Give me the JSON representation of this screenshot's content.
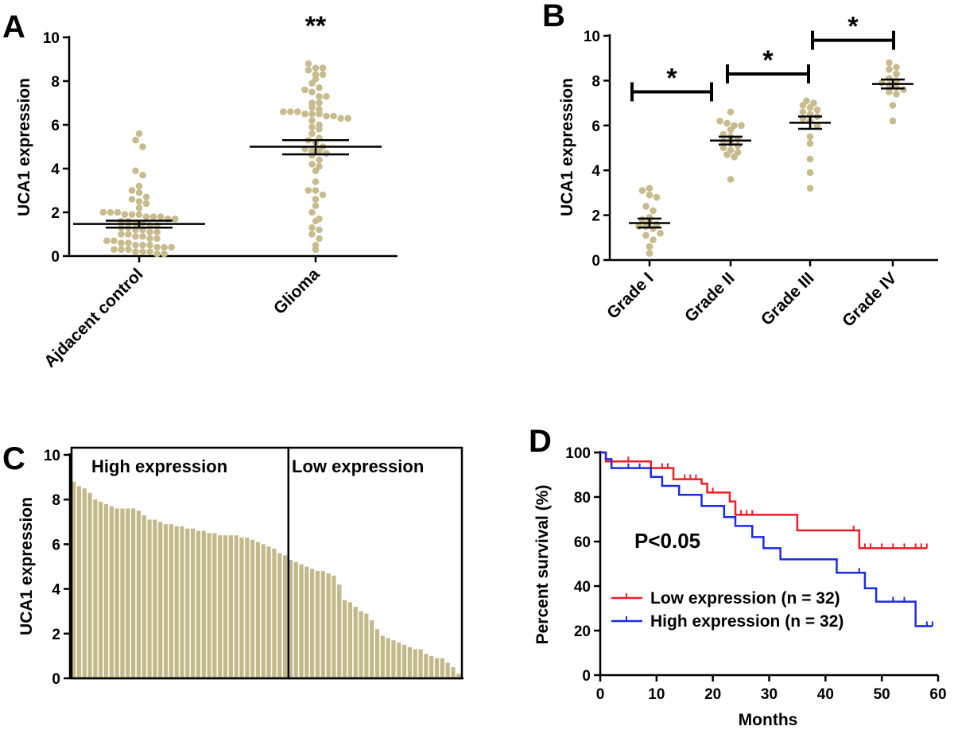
{
  "colors": {
    "dot": "#c8bb8d",
    "bar": "#c3b889",
    "low": "#ee1c24",
    "high": "#1c2ae8",
    "axis": "#000000"
  },
  "chart_data": [
    {
      "panel": "A",
      "type": "scatter",
      "ylabel": "UCA1 expression",
      "ylim": [
        0,
        10
      ],
      "yticks": [
        "0",
        "2",
        "4",
        "6",
        "8",
        "10"
      ],
      "categories": [
        "Ajdacent control",
        "Glioma"
      ],
      "groups": [
        {
          "category": "Ajdacent control",
          "mean": 1.47,
          "sem_low": 1.3,
          "sem_high": 1.62,
          "values": [
            5.6,
            5.3,
            5.0,
            3.9,
            3.7,
            3.2,
            3.0,
            2.9,
            2.7,
            2.6,
            2.5,
            2.4,
            2.2,
            2.0,
            2.0,
            2.0,
            1.9,
            1.9,
            1.9,
            1.8,
            1.8,
            1.8,
            1.7,
            1.7,
            1.6,
            1.6,
            1.5,
            1.5,
            1.4,
            1.4,
            1.3,
            1.3,
            1.2,
            1.2,
            1.1,
            1.1,
            1.0,
            1.0,
            0.9,
            0.9,
            0.8,
            0.8,
            0.7,
            0.7,
            0.6,
            0.6,
            0.5,
            0.5,
            0.5,
            0.4,
            0.4,
            0.4,
            0.3,
            0.3,
            0.3,
            0.2,
            0.2,
            0.2,
            0.1,
            0.1
          ]
        },
        {
          "category": "Glioma",
          "mean": 5.0,
          "sem_low": 4.65,
          "sem_high": 5.3,
          "values": [
            8.8,
            8.6,
            8.6,
            8.5,
            8.3,
            8.3,
            8.1,
            7.9,
            7.7,
            7.6,
            7.5,
            7.3,
            7.3,
            7.0,
            7.0,
            6.8,
            6.7,
            6.6,
            6.6,
            6.6,
            6.5,
            6.5,
            6.5,
            6.4,
            6.4,
            6.3,
            6.3,
            6.2,
            6.0,
            5.9,
            5.8,
            5.6,
            5.4,
            5.3,
            5.2,
            5.0,
            4.9,
            4.8,
            4.8,
            4.7,
            4.6,
            4.4,
            4.2,
            4.1,
            3.9,
            3.4,
            3.0,
            3.0,
            2.8,
            2.6,
            2.3,
            2.0,
            1.7,
            1.6,
            1.3,
            1.2,
            1.0,
            0.8,
            0.5,
            0.3
          ]
        }
      ],
      "annotations": [
        {
          "text": "**",
          "category": "Glioma",
          "y": 10.0
        }
      ]
    },
    {
      "panel": "B",
      "type": "scatter",
      "ylabel": "UCA1 expression",
      "ylim": [
        0,
        10
      ],
      "yticks": [
        "0",
        "2",
        "4",
        "6",
        "8",
        "10"
      ],
      "categories": [
        "Grade I",
        "Grade II",
        "Grade III",
        "Grade IV"
      ],
      "groups": [
        {
          "category": "Grade I",
          "mean": 1.65,
          "sem_low": 1.45,
          "sem_high": 1.85,
          "values": [
            3.2,
            3.1,
            2.9,
            2.8,
            2.4,
            2.2,
            1.9,
            1.8,
            1.7,
            1.6,
            1.5,
            1.5,
            1.4,
            1.2,
            1.1,
            0.9,
            0.6,
            0.3
          ]
        },
        {
          "category": "Grade II",
          "mean": 5.33,
          "sem_low": 5.15,
          "sem_high": 5.5,
          "values": [
            6.6,
            6.2,
            6.1,
            6.0,
            6.0,
            5.8,
            5.6,
            5.5,
            5.4,
            5.3,
            5.2,
            5.1,
            5.0,
            4.9,
            4.8,
            4.7,
            4.6,
            3.6
          ]
        },
        {
          "category": "Grade III",
          "mean": 6.12,
          "sem_low": 5.85,
          "sem_high": 6.4,
          "values": [
            7.1,
            7.0,
            6.9,
            6.8,
            6.7,
            6.6,
            6.5,
            6.4,
            6.3,
            6.2,
            6.0,
            5.5,
            5.2,
            4.5,
            3.9,
            3.2
          ]
        },
        {
          "category": "Grade IV",
          "mean": 7.85,
          "sem_low": 7.65,
          "sem_high": 8.05,
          "values": [
            8.8,
            8.6,
            8.5,
            8.3,
            8.1,
            8.0,
            7.9,
            7.8,
            7.7,
            7.6,
            7.5,
            7.4,
            6.9,
            6.2
          ]
        }
      ],
      "annotations": [
        {
          "text": "*",
          "from": "Grade I",
          "to": "Grade II",
          "y": 7.5
        },
        {
          "text": "*",
          "from": "Grade II",
          "to": "Grade III",
          "y": 8.3
        },
        {
          "text": "*",
          "from": "Grade III",
          "to": "Grade IV",
          "y": 9.8
        }
      ]
    },
    {
      "panel": "C",
      "type": "bar",
      "ylabel": "UCA1 expression",
      "ylim": [
        0,
        10
      ],
      "yticks": [
        "0",
        "2",
        "4",
        "6",
        "8",
        "10"
      ],
      "values": [
        8.8,
        8.6,
        8.5,
        8.3,
        8.0,
        7.9,
        7.8,
        7.7,
        7.6,
        7.6,
        7.6,
        7.6,
        7.5,
        7.3,
        7.1,
        7.1,
        7.0,
        6.9,
        6.9,
        6.8,
        6.8,
        6.7,
        6.7,
        6.6,
        6.6,
        6.5,
        6.5,
        6.4,
        6.4,
        6.4,
        6.4,
        6.3,
        6.3,
        6.2,
        6.1,
        6.0,
        5.9,
        5.8,
        5.6,
        5.5,
        5.3,
        5.2,
        5.1,
        5.0,
        4.9,
        4.8,
        4.8,
        4.7,
        4.6,
        4.2,
        3.5,
        3.4,
        3.2,
        3.0,
        2.9,
        2.6,
        2.2,
        1.9,
        1.8,
        1.7,
        1.6,
        1.5,
        1.4,
        1.3,
        1.3,
        1.1,
        1.0,
        0.9,
        0.9,
        0.7,
        0.5,
        0.2
      ],
      "groups": [
        {
          "label": "High expression",
          "from": 0,
          "to": 40
        },
        {
          "label": "Low expression",
          "from": 40,
          "to": 72
        }
      ]
    },
    {
      "panel": "D",
      "type": "line",
      "xlabel": "Months",
      "ylabel": "Percent survival (%)",
      "xlim": [
        0,
        60
      ],
      "ylim": [
        0,
        100
      ],
      "xticks": [
        "0",
        "10",
        "20",
        "30",
        "40",
        "50",
        "60"
      ],
      "yticks": [
        "0",
        "20",
        "40",
        "60",
        "80",
        "100"
      ],
      "annotation": "P<0.05",
      "series": [
        {
          "name": "Low expression (n = 32)",
          "color_key": "low",
          "steps": [
            [
              0,
              100
            ],
            [
              1,
              96
            ],
            [
              9,
              93
            ],
            [
              13,
              88
            ],
            [
              18,
              86
            ],
            [
              19,
              82
            ],
            [
              23,
              78
            ],
            [
              24,
              72
            ],
            [
              35,
              65
            ],
            [
              46,
              57
            ],
            [
              58,
              57
            ]
          ],
          "censored": [
            [
              5,
              96
            ],
            [
              11,
              93
            ],
            [
              12,
              93
            ],
            [
              15,
              88
            ],
            [
              16,
              88
            ],
            [
              17,
              88
            ],
            [
              20,
              82
            ],
            [
              25,
              72
            ],
            [
              26,
              72
            ],
            [
              27,
              72
            ],
            [
              45,
              65
            ],
            [
              47,
              57
            ],
            [
              48,
              57
            ],
            [
              50,
              57
            ],
            [
              52,
              57
            ],
            [
              54,
              57
            ],
            [
              56,
              57
            ],
            [
              57,
              57
            ],
            [
              58,
              57
            ]
          ]
        },
        {
          "name": "High expression (n = 32)",
          "color_key": "high",
          "steps": [
            [
              0,
              100
            ],
            [
              1,
              97
            ],
            [
              2,
              93
            ],
            [
              9,
              89
            ],
            [
              11,
              85
            ],
            [
              14,
              81
            ],
            [
              18,
              76
            ],
            [
              22,
              71
            ],
            [
              24,
              67
            ],
            [
              27,
              62
            ],
            [
              29,
              57
            ],
            [
              32,
              52
            ],
            [
              42,
              46
            ],
            [
              47,
              39
            ],
            [
              49,
              33
            ],
            [
              56,
              22
            ],
            [
              59,
              22
            ]
          ],
          "censored": [
            [
              5,
              93
            ],
            [
              7,
              93
            ],
            [
              46,
              46
            ],
            [
              52,
              33
            ],
            [
              54,
              33
            ],
            [
              58,
              22
            ],
            [
              59,
              22
            ]
          ]
        }
      ]
    }
  ]
}
